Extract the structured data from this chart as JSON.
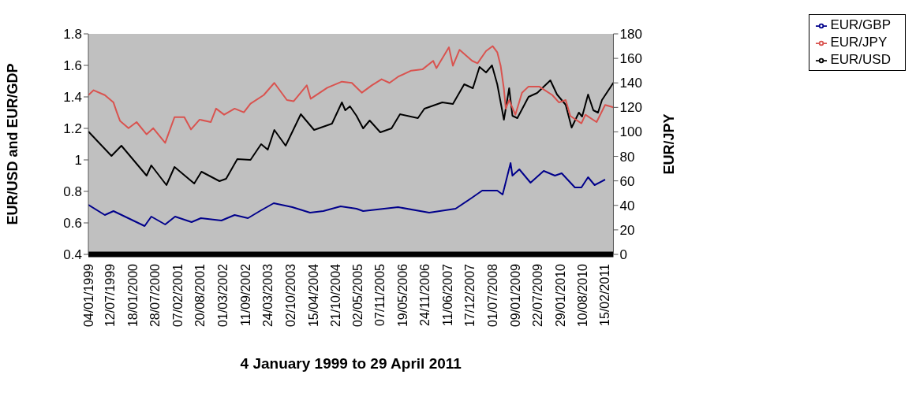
{
  "chart_data": {
    "type": "line",
    "xlabel": "4 January 1999 to 29 April 2011",
    "ylabel": "EUR/USD and EUR/GDP",
    "y2label": "EUR/JPY",
    "legend": "top right",
    "marker": "none",
    "line_style": "solid",
    "xlim": [
      "1999-01-04",
      "2011-04-29"
    ],
    "xticks": [
      {
        "value": "1999-01-04",
        "label": "04/01/1999"
      },
      {
        "value": "1999-07-12",
        "label": "12/07/1999"
      },
      {
        "value": "2000-01-18",
        "label": "18/01/2000"
      },
      {
        "value": "2000-07-28",
        "label": "28/07/2000"
      },
      {
        "value": "2001-02-07",
        "label": "07/02/2001"
      },
      {
        "value": "2001-08-20",
        "label": "20/08/2001"
      },
      {
        "value": "2002-03-01",
        "label": "01/03/2002"
      },
      {
        "value": "2002-09-11",
        "label": "11/09/2002"
      },
      {
        "value": "2003-03-24",
        "label": "24/03/2003"
      },
      {
        "value": "2003-10-02",
        "label": "02/10/2003"
      },
      {
        "value": "2004-04-15",
        "label": "15/04/2004"
      },
      {
        "value": "2004-10-21",
        "label": "21/10/2004"
      },
      {
        "value": "2005-05-02",
        "label": "02/05/2005"
      },
      {
        "value": "2005-11-07",
        "label": "07/11/2005"
      },
      {
        "value": "2006-05-19",
        "label": "19/05/2006"
      },
      {
        "value": "2006-11-24",
        "label": "24/11/2006"
      },
      {
        "value": "2007-06-11",
        "label": "11/06/2007"
      },
      {
        "value": "2007-12-17",
        "label": "17/12/2007"
      },
      {
        "value": "2008-07-01",
        "label": "01/07/2008"
      },
      {
        "value": "2009-01-09",
        "label": "09/01/2009"
      },
      {
        "value": "2009-07-22",
        "label": "22/07/2009"
      },
      {
        "value": "2010-01-29",
        "label": "29/01/2010"
      },
      {
        "value": "2010-08-10",
        "label": "10/08/2010"
      },
      {
        "value": "2011-02-15",
        "label": "15/02/2011"
      }
    ],
    "ylim": [
      0.4,
      1.8
    ],
    "yticks": [
      0.4,
      0.6,
      0.8,
      1,
      1.2,
      1.4,
      1.6,
      1.8
    ],
    "y2lim": [
      0,
      180
    ],
    "y2ticks": [
      0,
      20,
      40,
      60,
      80,
      100,
      120,
      140,
      160,
      180
    ],
    "series": [
      {
        "name": "EUR/USD",
        "color": "#000000",
        "x": [
          "1999-01-04",
          "1999-07-21",
          "1999-10-14",
          "2000-05-17",
          "2000-06-26",
          "2000-11-03",
          "2001-01-11",
          "2001-06-29",
          "2001-08-30",
          "2002-01-31",
          "2002-03-29",
          "2002-07-03",
          "2002-10-24",
          "2003-01-23",
          "2003-03-21",
          "2003-05-16",
          "2003-08-21",
          "2003-12-29",
          "2004-04-21",
          "2004-09-21",
          "2004-12-15",
          "2005-01-13",
          "2005-02-22",
          "2005-04-19",
          "2005-06-15",
          "2005-08-10",
          "2005-11-09",
          "2006-02-13",
          "2006-04-27",
          "2006-09-27",
          "2006-11-22",
          "2007-04-24",
          "2007-07-24",
          "2007-10-29",
          "2008-01-11",
          "2008-03-08",
          "2008-05-03",
          "2008-06-23",
          "2008-08-07",
          "2008-10-03",
          "2008-11-17",
          "2008-12-15",
          "2009-01-26",
          "2009-05-02",
          "2009-07-15",
          "2009-11-05",
          "2010-01-01",
          "2010-03-16",
          "2010-05-06",
          "2010-07-07",
          "2010-08-04",
          "2010-09-24",
          "2010-11-08",
          "2010-12-18",
          "2011-01-21",
          "2011-04-29"
        ],
        "values": [
          1.18,
          1.025,
          1.09,
          0.9,
          0.965,
          0.84,
          0.955,
          0.85,
          0.925,
          0.865,
          0.88,
          1.005,
          1.0,
          1.1,
          1.065,
          1.19,
          1.09,
          1.29,
          1.19,
          1.23,
          1.365,
          1.315,
          1.34,
          1.28,
          1.2,
          1.25,
          1.175,
          1.2,
          1.29,
          1.265,
          1.325,
          1.365,
          1.355,
          1.48,
          1.455,
          1.59,
          1.555,
          1.6,
          1.48,
          1.255,
          1.455,
          1.28,
          1.265,
          1.4,
          1.425,
          1.505,
          1.415,
          1.35,
          1.205,
          1.3,
          1.275,
          1.415,
          1.315,
          1.3,
          1.38,
          1.49
        ]
      },
      {
        "name": "EUR/GBP",
        "color": "#00008b",
        "x": [
          "1999-01-04",
          "1999-05-25",
          "1999-08-07",
          "2000-04-30",
          "2000-06-26",
          "2000-10-23",
          "2001-01-16",
          "2001-06-06",
          "2001-08-25",
          "2002-02-17",
          "2002-06-10",
          "2002-10-02",
          "2003-01-23",
          "2003-05-11",
          "2003-10-17",
          "2004-03-17",
          "2004-07-09",
          "2004-12-04",
          "2005-04-19",
          "2005-06-15",
          "2006-04-10",
          "2007-01-02",
          "2007-08-16",
          "2007-12-25",
          "2008-03-31",
          "2008-08-07",
          "2008-09-22",
          "2008-11-29",
          "2008-12-15",
          "2009-02-12",
          "2009-05-19",
          "2009-09-09",
          "2009-12-14",
          "2010-02-10",
          "2010-06-03",
          "2010-07-29",
          "2010-09-24",
          "2010-11-19",
          "2011-02-17"
        ],
        "values": [
          0.715,
          0.65,
          0.675,
          0.58,
          0.64,
          0.59,
          0.64,
          0.605,
          0.63,
          0.615,
          0.65,
          0.63,
          0.68,
          0.725,
          0.7,
          0.665,
          0.675,
          0.705,
          0.69,
          0.675,
          0.7,
          0.665,
          0.69,
          0.755,
          0.805,
          0.805,
          0.78,
          0.98,
          0.9,
          0.94,
          0.855,
          0.93,
          0.9,
          0.915,
          0.825,
          0.825,
          0.89,
          0.84,
          0.875
        ]
      },
      {
        "name": "EUR/JPY",
        "color": "#d9534f",
        "axis": "y2",
        "x": [
          "1999-01-04",
          "1999-02-18",
          "1999-05-25",
          "1999-08-07",
          "1999-09-05",
          "1999-10-02",
          "1999-12-14",
          "2000-02-21",
          "2000-05-17",
          "2000-07-13",
          "2000-10-23",
          "2001-01-11",
          "2001-04-05",
          "2001-06-01",
          "2001-08-14",
          "2001-11-18",
          "2002-01-02",
          "2002-03-12",
          "2002-06-10",
          "2002-08-28",
          "2002-10-24",
          "2003-02-14",
          "2003-05-16",
          "2003-09-01",
          "2003-10-28",
          "2004-02-18",
          "2004-03-23",
          "2004-08-12",
          "2004-12-15",
          "2005-03-10",
          "2005-06-04",
          "2005-08-28",
          "2005-11-20",
          "2006-01-27",
          "2006-04-10",
          "2006-08-01",
          "2006-11-05",
          "2007-02-05",
          "2007-03-05",
          "2007-06-20",
          "2007-07-24",
          "2007-09-19",
          "2008-01-05",
          "2008-02-20",
          "2008-05-03",
          "2008-06-29",
          "2008-08-07",
          "2008-09-05",
          "2008-10-03",
          "2008-10-19",
          "2008-11-17",
          "2009-01-09",
          "2009-03-07",
          "2009-05-02",
          "2009-08-01",
          "2009-11-22",
          "2010-01-18",
          "2010-03-16",
          "2010-04-25",
          "2010-07-29",
          "2010-09-01",
          "2010-12-06",
          "2011-02-17",
          "2011-04-29"
        ],
        "values": [
          130,
          134,
          130,
          124,
          116,
          109,
          103,
          108,
          98,
          103,
          91,
          112,
          112,
          102,
          110,
          108,
          119,
          114,
          119,
          116,
          123,
          130,
          140,
          126,
          125,
          138,
          127,
          136,
          141,
          140,
          132,
          138,
          143,
          140,
          145,
          150,
          151,
          158,
          152,
          169,
          154,
          167,
          158,
          156,
          166,
          170,
          165,
          154,
          135,
          119,
          126,
          114,
          132,
          137,
          137,
          130,
          124,
          126,
          113,
          107,
          114,
          108,
          122,
          120
        ]
      }
    ]
  }
}
